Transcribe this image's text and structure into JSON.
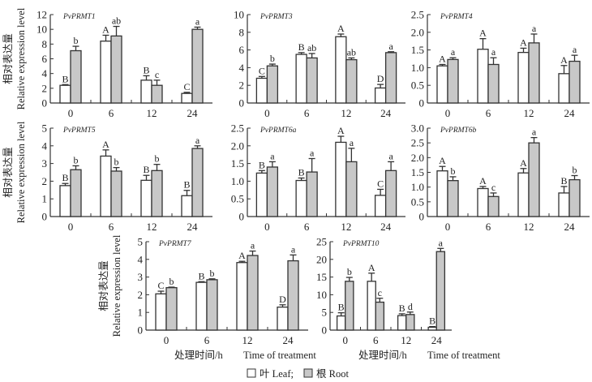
{
  "chart_data": {
    "type": "bar",
    "categories": [
      "0",
      "6",
      "12",
      "24"
    ],
    "ylabel_cn": "相对表达量",
    "ylabel_en": "Relative expression level",
    "xlabel_cn": "处理时间/h",
    "xlabel_en": "Time of treatment",
    "legend": {
      "leaf": "叶 Leaf;",
      "root": "根 Root",
      "placement": "bottom-center"
    },
    "colors": {
      "leaf": "#ffffff",
      "root": "#c8c8c8",
      "stroke": "#333333"
    },
    "panels": [
      {
        "gene": "PvPRMT1",
        "ylim": [
          0,
          12
        ],
        "yticks": [
          "0",
          "2",
          "4",
          "6",
          "8",
          "10",
          "12"
        ],
        "leaf": [
          2.4,
          8.4,
          3.1,
          1.3
        ],
        "leaf_err": [
          0.1,
          0.8,
          0.6,
          0.15
        ],
        "leaf_sig": [
          "B",
          "A",
          "B",
          "C"
        ],
        "root": [
          7.1,
          9.1,
          2.4,
          10.0
        ],
        "root_err": [
          0.6,
          1.3,
          0.7,
          0.3
        ],
        "root_sig": [
          "b",
          "ab",
          "c",
          "a"
        ]
      },
      {
        "gene": "PvPRMT3",
        "ylim": [
          0,
          10
        ],
        "yticks": [
          "0",
          "2",
          "4",
          "6",
          "8",
          "10"
        ],
        "leaf": [
          2.8,
          5.5,
          7.5,
          1.7
        ],
        "leaf_err": [
          0.2,
          0.2,
          0.3,
          0.4
        ],
        "leaf_sig": [
          "C",
          "B",
          "A",
          "D"
        ],
        "root": [
          4.2,
          5.1,
          4.9,
          5.7
        ],
        "root_err": [
          0.2,
          0.5,
          0.2,
          0.1
        ],
        "root_sig": [
          "b",
          "ab",
          "ab",
          "a"
        ]
      },
      {
        "gene": "PvPRMT4",
        "ylim": [
          0,
          2.5
        ],
        "yticks": [
          "0",
          "0.5",
          "1.0",
          "1.5",
          "2.0",
          "2.5"
        ],
        "leaf": [
          1.05,
          1.52,
          1.43,
          0.83
        ],
        "leaf_err": [
          0.04,
          0.3,
          0.12,
          0.23
        ],
        "leaf_sig": [
          "A",
          "A",
          "A",
          "A"
        ],
        "root": [
          1.23,
          1.09,
          1.7,
          1.18
        ],
        "root_err": [
          0.05,
          0.19,
          0.25,
          0.17
        ],
        "root_sig": [
          "a",
          "a",
          "a",
          "a"
        ]
      },
      {
        "gene": "PvPRMT5",
        "ylim": [
          0,
          5
        ],
        "yticks": [
          "0",
          "1",
          "2",
          "3",
          "4",
          "5"
        ],
        "leaf": [
          1.75,
          3.42,
          2.05,
          1.18
        ],
        "leaf_err": [
          0.12,
          0.35,
          0.28,
          0.3
        ],
        "leaf_sig": [
          "B",
          "A",
          "B",
          "B"
        ],
        "root": [
          2.65,
          2.57,
          2.6,
          3.85
        ],
        "root_err": [
          0.22,
          0.2,
          0.35,
          0.15
        ],
        "root_sig": [
          "b",
          "b",
          "b",
          "a"
        ]
      },
      {
        "gene": "PvPRMT6a",
        "ylim": [
          0,
          2.5
        ],
        "yticks": [
          "0",
          "0.5",
          "1.0",
          "1.5",
          "2.0",
          "2.5"
        ],
        "leaf": [
          1.23,
          1.02,
          2.1,
          0.6
        ],
        "leaf_err": [
          0.07,
          0.07,
          0.17,
          0.17
        ],
        "leaf_sig": [
          "B",
          "B",
          "A",
          "C"
        ],
        "root": [
          1.4,
          1.26,
          1.55,
          1.3
        ],
        "root_err": [
          0.15,
          0.38,
          0.38,
          0.25
        ],
        "root_sig": [
          "a",
          "a",
          "a",
          "a"
        ]
      },
      {
        "gene": "PvPRMT6b",
        "ylim": [
          0,
          3.0
        ],
        "yticks": [
          "0",
          "0.5",
          "1.0",
          "1.5",
          "2.0",
          "2.5",
          "3.0"
        ],
        "leaf": [
          1.55,
          0.95,
          1.48,
          0.8
        ],
        "leaf_err": [
          0.15,
          0.07,
          0.15,
          0.22
        ],
        "leaf_sig": [
          "A",
          "A",
          "A",
          "B"
        ],
        "root": [
          1.22,
          0.68,
          2.5,
          1.25
        ],
        "root_err": [
          0.13,
          0.12,
          0.18,
          0.14
        ],
        "root_sig": [
          "b",
          "c",
          "a",
          "b"
        ]
      },
      {
        "gene": "PvPRMT7",
        "ylim": [
          0,
          5
        ],
        "yticks": [
          "0",
          "1",
          "2",
          "3",
          "4",
          "5"
        ],
        "leaf": [
          2.05,
          2.7,
          3.82,
          1.3
        ],
        "leaf_err": [
          0.15,
          0.04,
          0.07,
          0.13
        ],
        "leaf_sig": [
          "C",
          "B",
          "A",
          "D"
        ],
        "root": [
          2.4,
          2.85,
          4.22,
          3.92
        ],
        "root_err": [
          0.03,
          0.05,
          0.25,
          0.33
        ],
        "root_sig": [
          "b",
          "b",
          "a",
          "a"
        ]
      },
      {
        "gene": "PvPRMT10",
        "ylim": [
          0,
          25
        ],
        "yticks": [
          "0",
          "5",
          "10",
          "15",
          "20",
          "25"
        ],
        "leaf": [
          4.0,
          13.8,
          4.1,
          0.8
        ],
        "leaf_err": [
          0.9,
          2.3,
          0.5,
          0.2
        ],
        "leaf_sig": [
          "B",
          "A",
          "B",
          "B"
        ],
        "root": [
          13.8,
          7.9,
          4.4,
          22.2
        ],
        "root_err": [
          1.1,
          1.1,
          0.7,
          0.9
        ],
        "root_sig": [
          "b",
          "c",
          "d",
          "a"
        ]
      }
    ]
  }
}
